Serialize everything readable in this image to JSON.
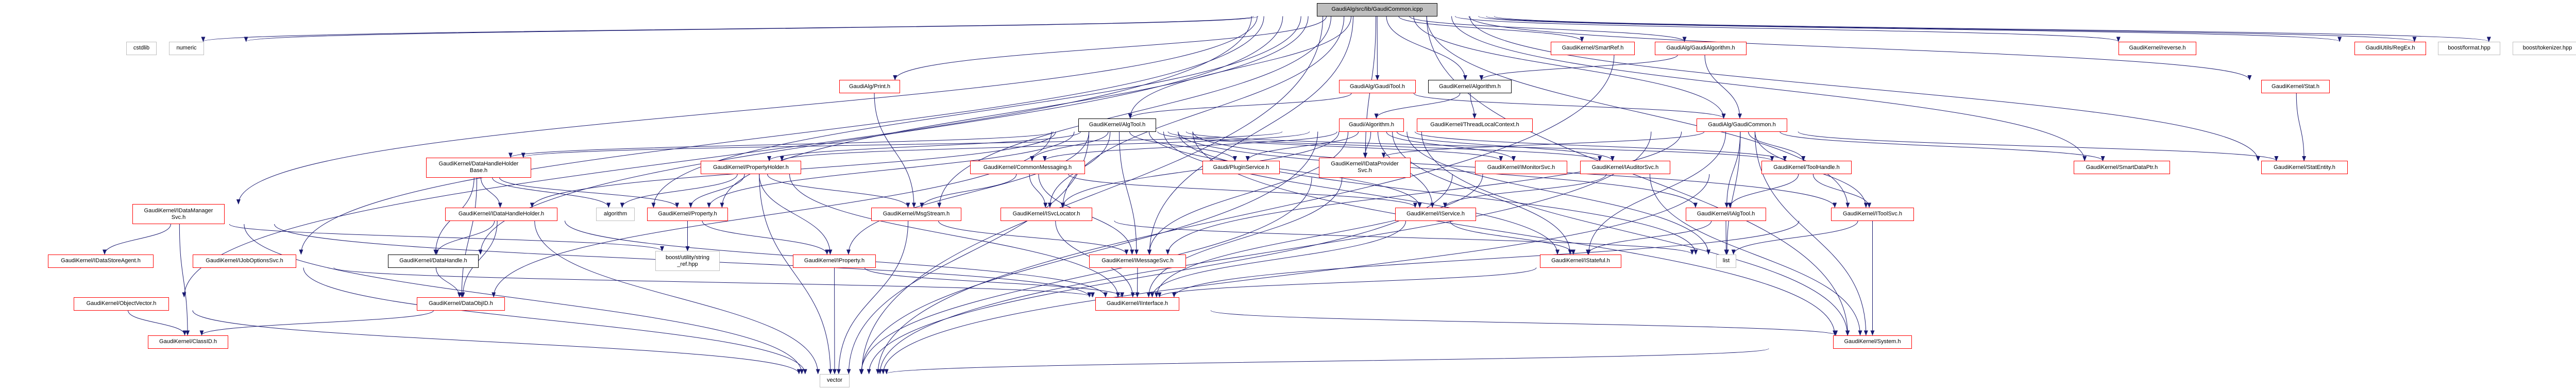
{
  "colors": {
    "edge": "#191970",
    "documented": "#ff0000",
    "external": "#bfbfbf",
    "root_fill": "#bfbfbf",
    "plain": "#000000"
  },
  "nodes": [
    {
      "id": "root",
      "lines": [
        "GaudiAlg/src/lib/GaudiCommon.icpp"
      ],
      "kind": "root"
    },
    {
      "id": "cstdlib",
      "lines": [
        "cstdlib"
      ],
      "kind": "ext"
    },
    {
      "id": "numeric",
      "lines": [
        "numeric"
      ],
      "kind": "ext"
    },
    {
      "id": "IDataManagerSvc",
      "lines": [
        "GaudiKernel/IDataManager",
        "Svc.h"
      ],
      "kind": "doc"
    },
    {
      "id": "IDataStoreAgent",
      "lines": [
        "GaudiKernel/IDataStoreAgent.h"
      ],
      "kind": "doc"
    },
    {
      "id": "IJobOptionsSvc",
      "lines": [
        "GaudiKernel/IJobOptionsSvc.h"
      ],
      "kind": "doc"
    },
    {
      "id": "ObjectVector",
      "lines": [
        "GaudiKernel/ObjectVector.h"
      ],
      "kind": "doc"
    },
    {
      "id": "ClassID",
      "lines": [
        "GaudiKernel/ClassID.h"
      ],
      "kind": "doc"
    },
    {
      "id": "DataHandleHolderBase",
      "lines": [
        "GaudiKernel/DataHandleHolder",
        "Base.h"
      ],
      "kind": "doc"
    },
    {
      "id": "IDataHandleHolder",
      "lines": [
        "GaudiKernel/IDataHandleHolder.h"
      ],
      "kind": "doc"
    },
    {
      "id": "DataHandle",
      "lines": [
        "GaudiKernel/DataHandle.h"
      ],
      "kind": "plain"
    },
    {
      "id": "DataObjID",
      "lines": [
        "GaudiKernel/DataObjID.h"
      ],
      "kind": "doc"
    },
    {
      "id": "algorithm",
      "lines": [
        "algorithm"
      ],
      "kind": "ext"
    },
    {
      "id": "Property",
      "lines": [
        "GaudiKernel/Property.h"
      ],
      "kind": "doc"
    },
    {
      "id": "string_ref",
      "lines": [
        "boost/utility/string",
        "_ref.hpp"
      ],
      "kind": "ext"
    },
    {
      "id": "IProperty",
      "lines": [
        "GaudiKernel/IProperty.h"
      ],
      "kind": "doc"
    },
    {
      "id": "vector",
      "lines": [
        "vector"
      ],
      "kind": "ext"
    },
    {
      "id": "MsgStream",
      "lines": [
        "GaudiKernel/MsgStream.h"
      ],
      "kind": "doc"
    },
    {
      "id": "Print",
      "lines": [
        "GaudiAlg/Print.h"
      ],
      "kind": "doc"
    },
    {
      "id": "PropertyHolder",
      "lines": [
        "GaudiKernel/PropertyHolder.h"
      ],
      "kind": "doc"
    },
    {
      "id": "CommonMessaging",
      "lines": [
        "GaudiKernel/CommonMessaging.h"
      ],
      "kind": "doc"
    },
    {
      "id": "PluginService",
      "lines": [
        "Gaudi/PluginService.h"
      ],
      "kind": "doc"
    },
    {
      "id": "ISvcLocator",
      "lines": [
        "GaudiKernel/ISvcLocator.h"
      ],
      "kind": "doc"
    },
    {
      "id": "IMessageSvc",
      "lines": [
        "GaudiKernel/IMessageSvc.h"
      ],
      "kind": "doc"
    },
    {
      "id": "IInterface",
      "lines": [
        "GaudiKernel/IInterface.h"
      ],
      "kind": "doc"
    },
    {
      "id": "AlgTool",
      "lines": [
        "GaudiKernel/AlgTool.h"
      ],
      "kind": "plain"
    },
    {
      "id": "GaudiTool",
      "lines": [
        "GaudiAlg/GaudiTool.h"
      ],
      "kind": "doc"
    },
    {
      "id": "Algorithm",
      "lines": [
        "GaudiKernel/Algorithm.h"
      ],
      "kind": "plain"
    },
    {
      "id": "GaudiAlgorithmCore",
      "lines": [
        "Gaudi/Algorithm.h"
      ],
      "kind": "doc"
    },
    {
      "id": "ThreadLocalContext",
      "lines": [
        "GaudiKernel/ThreadLocalContext.h"
      ],
      "kind": "doc"
    },
    {
      "id": "GaudiCommon",
      "lines": [
        "GaudiAlg/GaudiCommon.h"
      ],
      "kind": "doc"
    },
    {
      "id": "SmartRef",
      "lines": [
        "GaudiKernel/SmartRef.h"
      ],
      "kind": "doc"
    },
    {
      "id": "GaudiAlgorithm",
      "lines": [
        "GaudiAlg/GaudiAlgorithm.h"
      ],
      "kind": "doc"
    },
    {
      "id": "IDataProviderSvc",
      "lines": [
        "GaudiKernel/IDataProvider",
        "Svc.h"
      ],
      "kind": "doc"
    },
    {
      "id": "IMonitorSvc",
      "lines": [
        "GaudiKernel/IMonitorSvc.h"
      ],
      "kind": "doc"
    },
    {
      "id": "IAuditorSvc",
      "lines": [
        "GaudiKernel/IAuditorSvc.h"
      ],
      "kind": "doc"
    },
    {
      "id": "ToolHandle",
      "lines": [
        "GaudiKernel/ToolHandle.h"
      ],
      "kind": "doc"
    },
    {
      "id": "IService",
      "lines": [
        "GaudiKernel/IService.h"
      ],
      "kind": "doc"
    },
    {
      "id": "IAlgTool",
      "lines": [
        "GaudiKernel/IAlgTool.h"
      ],
      "kind": "doc"
    },
    {
      "id": "IStateful",
      "lines": [
        "GaudiKernel/IStateful.h"
      ],
      "kind": "doc"
    },
    {
      "id": "list",
      "lines": [
        "list"
      ],
      "kind": "ext"
    },
    {
      "id": "IToolSvc",
      "lines": [
        "GaudiKernel/IToolSvc.h"
      ],
      "kind": "doc"
    },
    {
      "id": "System",
      "lines": [
        "GaudiKernel/System.h"
      ],
      "kind": "doc"
    },
    {
      "id": "SmartDataPtr",
      "lines": [
        "GaudiKernel/SmartDataPtr.h"
      ],
      "kind": "doc"
    },
    {
      "id": "reverse",
      "lines": [
        "GaudiKernel/reverse.h"
      ],
      "kind": "doc"
    },
    {
      "id": "Stat",
      "lines": [
        "GaudiKernel/Stat.h"
      ],
      "kind": "doc"
    },
    {
      "id": "StatEntity",
      "lines": [
        "GaudiKernel/StatEntity.h"
      ],
      "kind": "doc"
    },
    {
      "id": "RegEx",
      "lines": [
        "GaudiUtils/RegEx.h"
      ],
      "kind": "doc"
    },
    {
      "id": "format",
      "lines": [
        "boost/format.hpp"
      ],
      "kind": "ext"
    },
    {
      "id": "tokenizer",
      "lines": [
        "boost/tokenizer.hpp"
      ],
      "kind": "ext"
    }
  ],
  "edges": [
    [
      "root",
      "cstdlib"
    ],
    [
      "root",
      "numeric"
    ],
    [
      "root",
      "IDataManagerSvc"
    ],
    [
      "root",
      "IJobOptionsSvc"
    ],
    [
      "root",
      "ObjectVector"
    ],
    [
      "root",
      "algorithm"
    ],
    [
      "root",
      "Property"
    ],
    [
      "root",
      "Print"
    ],
    [
      "root",
      "MsgStream"
    ],
    [
      "root",
      "AlgTool"
    ],
    [
      "root",
      "ISvcLocator"
    ],
    [
      "root",
      "IDataProviderSvc"
    ],
    [
      "root",
      "GaudiTool"
    ],
    [
      "root",
      "Algorithm"
    ],
    [
      "root",
      "SmartRef"
    ],
    [
      "root",
      "GaudiAlgorithm"
    ],
    [
      "root",
      "GaudiCommon"
    ],
    [
      "root",
      "reverse"
    ],
    [
      "root",
      "SmartDataPtr"
    ],
    [
      "root",
      "IToolSvc"
    ],
    [
      "root",
      "System"
    ],
    [
      "root",
      "Stat"
    ],
    [
      "root",
      "StatEntity"
    ],
    [
      "root",
      "RegEx"
    ],
    [
      "root",
      "format"
    ],
    [
      "root",
      "tokenizer"
    ],
    [
      "root",
      "vector"
    ],
    [
      "root",
      "DataHandle"
    ],
    [
      "root",
      "IMessageSvc"
    ],
    [
      "IDataManagerSvc",
      "IDataStoreAgent"
    ],
    [
      "IDataManagerSvc",
      "ClassID"
    ],
    [
      "IDataManagerSvc",
      "IInterface"
    ],
    [
      "IDataManagerSvc",
      "vector"
    ],
    [
      "IDataManagerSvc",
      "string_ref"
    ],
    [
      "IJobOptionsSvc",
      "IInterface"
    ],
    [
      "IJobOptionsSvc",
      "vector"
    ],
    [
      "ObjectVector",
      "ClassID"
    ],
    [
      "ObjectVector",
      "vector"
    ],
    [
      "DataHandleHolderBase",
      "IDataHandleHolder"
    ],
    [
      "DataHandleHolderBase",
      "DataHandle"
    ],
    [
      "DataHandleHolderBase",
      "DataObjID"
    ],
    [
      "DataHandleHolderBase",
      "algorithm"
    ],
    [
      "DataHandleHolderBase",
      "Property"
    ],
    [
      "IDataHandleHolder",
      "DataHandle"
    ],
    [
      "IDataHandleHolder",
      "DataObjID"
    ],
    [
      "IDataHandleHolder",
      "vector"
    ],
    [
      "IDataHandleHolder",
      "IInterface"
    ],
    [
      "DataHandle",
      "DataObjID"
    ],
    [
      "DataObjID",
      "ClassID"
    ],
    [
      "PropertyHolder",
      "algorithm"
    ],
    [
      "PropertyHolder",
      "Property"
    ],
    [
      "PropertyHolder",
      "IProperty"
    ],
    [
      "PropertyHolder",
      "vector"
    ],
    [
      "PropertyHolder",
      "IInterface"
    ],
    [
      "PropertyHolder",
      "MsgStream"
    ],
    [
      "Property",
      "string_ref"
    ],
    [
      "Property",
      "IProperty"
    ],
    [
      "IProperty",
      "vector"
    ],
    [
      "IProperty",
      "IInterface"
    ],
    [
      "Print",
      "MsgStream"
    ],
    [
      "MsgStream",
      "IMessageSvc"
    ],
    [
      "MsgStream",
      "vector"
    ],
    [
      "AlgTool",
      "CommonMessaging"
    ],
    [
      "AlgTool",
      "PluginService"
    ],
    [
      "AlgTool",
      "ISvcLocator"
    ],
    [
      "AlgTool",
      "IMessageSvc"
    ],
    [
      "AlgTool",
      "IAlgTool"
    ],
    [
      "AlgTool",
      "IToolSvc"
    ],
    [
      "AlgTool",
      "IMonitorSvc"
    ],
    [
      "AlgTool",
      "IAuditorSvc"
    ],
    [
      "AlgTool",
      "IService"
    ],
    [
      "AlgTool",
      "IStateful"
    ],
    [
      "AlgTool",
      "IDataHandleHolder"
    ],
    [
      "AlgTool",
      "DataHandleHolderBase"
    ],
    [
      "AlgTool",
      "PropertyHolder"
    ],
    [
      "AlgTool",
      "Property"
    ],
    [
      "AlgTool",
      "IProperty"
    ],
    [
      "AlgTool",
      "System"
    ],
    [
      "AlgTool",
      "vector"
    ],
    [
      "AlgTool",
      "list"
    ],
    [
      "AlgTool",
      "ToolHandle"
    ],
    [
      "AlgTool",
      "DataObjID"
    ],
    [
      "CommonMessaging",
      "MsgStream"
    ],
    [
      "CommonMessaging",
      "ISvcLocator"
    ],
    [
      "CommonMessaging",
      "IMessageSvc"
    ],
    [
      "CommonMessaging",
      "IService"
    ],
    [
      "ISvcLocator",
      "IInterface"
    ],
    [
      "ISvcLocator",
      "list"
    ],
    [
      "IMessageSvc",
      "IInterface"
    ],
    [
      "IInterface",
      "System"
    ],
    [
      "GaudiTool",
      "AlgTool"
    ],
    [
      "GaudiTool",
      "GaudiCommon"
    ],
    [
      "Algorithm",
      "GaudiAlgorithmCore"
    ],
    [
      "Algorithm",
      "ThreadLocalContext"
    ],
    [
      "GaudiAlgorithm",
      "Algorithm"
    ],
    [
      "GaudiAlgorithm",
      "GaudiCommon"
    ],
    [
      "GaudiAlgorithm",
      "vector"
    ],
    [
      "GaudiAlgorithmCore",
      "IDataProviderSvc"
    ],
    [
      "GaudiAlgorithmCore",
      "IService"
    ],
    [
      "GaudiAlgorithmCore",
      "IMonitorSvc"
    ],
    [
      "GaudiAlgorithmCore",
      "IAuditorSvc"
    ],
    [
      "GaudiAlgorithmCore",
      "ISvcLocator"
    ],
    [
      "GaudiAlgorithmCore",
      "IMessageSvc"
    ],
    [
      "GaudiAlgorithmCore",
      "PropertyHolder"
    ],
    [
      "GaudiAlgorithmCore",
      "DataHandleHolderBase"
    ],
    [
      "GaudiAlgorithmCore",
      "CommonMessaging"
    ],
    [
      "GaudiAlgorithmCore",
      "ToolHandle"
    ],
    [
      "GaudiAlgorithmCore",
      "PluginService"
    ],
    [
      "GaudiAlgorithmCore",
      "System"
    ],
    [
      "GaudiAlgorithmCore",
      "vector"
    ],
    [
      "GaudiAlgorithmCore",
      "list"
    ],
    [
      "GaudiAlgorithmCore",
      "IStateful"
    ],
    [
      "GaudiCommon",
      "IAlgTool"
    ],
    [
      "GaudiCommon",
      "IStateful"
    ],
    [
      "GaudiCommon",
      "ToolHandle"
    ],
    [
      "GaudiCommon",
      "IToolSvc"
    ],
    [
      "GaudiCommon",
      "System"
    ],
    [
      "GaudiCommon",
      "SmartDataPtr"
    ],
    [
      "GaudiCommon",
      "StatEntity"
    ],
    [
      "GaudiCommon",
      "vector"
    ],
    [
      "GaudiCommon",
      "list"
    ],
    [
      "GaudiCommon",
      "IDataProviderSvc"
    ],
    [
      "GaudiCommon",
      "IMessageSvc"
    ],
    [
      "ToolHandle",
      "IAlgTool"
    ],
    [
      "ToolHandle",
      "IToolSvc"
    ],
    [
      "ToolHandle",
      "vector"
    ],
    [
      "IAlgTool",
      "IStateful"
    ],
    [
      "IAlgTool",
      "list"
    ],
    [
      "IStateful",
      "IInterface"
    ],
    [
      "IService",
      "IStateful"
    ],
    [
      "IService",
      "IInterface"
    ],
    [
      "IAuditorSvc",
      "IService"
    ],
    [
      "IAuditorSvc",
      "System"
    ],
    [
      "IMonitorSvc",
      "IInterface"
    ],
    [
      "IMonitorSvc",
      "vector"
    ],
    [
      "IDataProviderSvc",
      "IInterface"
    ],
    [
      "IDataProviderSvc",
      "vector"
    ],
    [
      "IToolSvc",
      "IInterface"
    ],
    [
      "IToolSvc",
      "System"
    ],
    [
      "IToolSvc",
      "list"
    ],
    [
      "System",
      "vector"
    ],
    [
      "Stat",
      "StatEntity"
    ]
  ]
}
